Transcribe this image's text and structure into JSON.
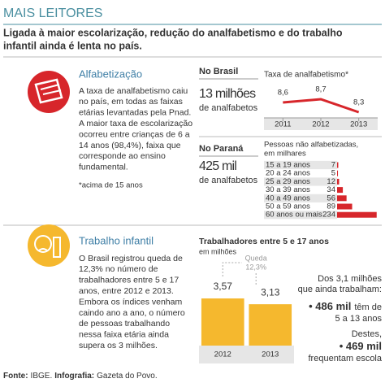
{
  "header": {
    "kicker": "MAIS LEITORES",
    "title_lines": [
      "Ligada à maior escolarização, redução do analfabetismo e do trabalho",
      "infantil ainda é lenta no país."
    ]
  },
  "literacy": {
    "title": "Alfabetização",
    "lines": [
      "A taxa de analfabetismo caiu",
      "no país, em todas as faixas",
      "etárias levantadas pela Pnad.",
      "A maior taxa de escolarização",
      "ocorreu entre crianças de 6 a",
      "14 anos (98,4%), faixa que",
      "corresponde ao ensino",
      "fundamental."
    ],
    "note": "*acima de 15 anos",
    "brasil": {
      "label": "No Brasil",
      "count": "13 milhões",
      "count_text": "de analfabetos"
    },
    "parana": {
      "label": "No Paraná",
      "count": "425 mil",
      "count_text": "de analfabetos"
    }
  },
  "child_labor": {
    "title": "Trabalho infantil",
    "lines": [
      "O Brasil registrou queda de",
      "12,3% no número de",
      "trabalhadores entre 5 e 17",
      "anos, entre 2012 e 2013.",
      "Embora os índices venham",
      "caindo ano a ano, o número",
      "de pessoas trabalhando",
      "nessa faixa etária ainda",
      "supera os 3 milhões."
    ],
    "summary": {
      "intro_lines": [
        "Dos 3,1 milhões",
        "que ainda trabalham:"
      ],
      "first_value": "486 mil",
      "first_text": "têm de",
      "first_text_2": "5 a 13 anos",
      "link": "Destes,",
      "second_value": "469 mil",
      "second_text": "frequentam escola"
    }
  },
  "footer": {
    "source_label": "Fonte:",
    "source": "IBGE.",
    "credit_label": "Infografia:",
    "credit": "Gazeta do Povo."
  },
  "chart_data": [
    {
      "type": "line",
      "title": "Taxa de analfabetismo*",
      "categories": [
        "2011",
        "2012",
        "2013"
      ],
      "values": [
        8.6,
        8.7,
        8.3
      ],
      "value_labels": [
        "8,6",
        "8,7",
        "8,3"
      ],
      "color": "#d7262b",
      "ylim": [
        8.0,
        9.0
      ]
    },
    {
      "type": "barh",
      "title": "Pessoas não alfabetizadas,",
      "subtitle": "em milhares",
      "categories": [
        "15 a 19 anos",
        "20 a 24 anos",
        "25 a 29 anos",
        "30 a 39 anos",
        "40 a 49 anos",
        "50 a 59 anos",
        "60 anos ou mais"
      ],
      "values": [
        7,
        5,
        12,
        34,
        56,
        89,
        234
      ],
      "color": "#d7262b",
      "xlim": [
        0,
        240
      ]
    },
    {
      "type": "bar",
      "title": "Trabalhadores entre 5 e 17 anos",
      "subtitle": "em milhões",
      "categories": [
        "2012",
        "2013"
      ],
      "values": [
        3.57,
        3.13
      ],
      "value_labels": [
        "3,57",
        "3,13"
      ],
      "annotation": [
        "Queda",
        "12,3%"
      ],
      "color": "#f5b82e",
      "ylim": [
        0,
        4
      ]
    }
  ]
}
